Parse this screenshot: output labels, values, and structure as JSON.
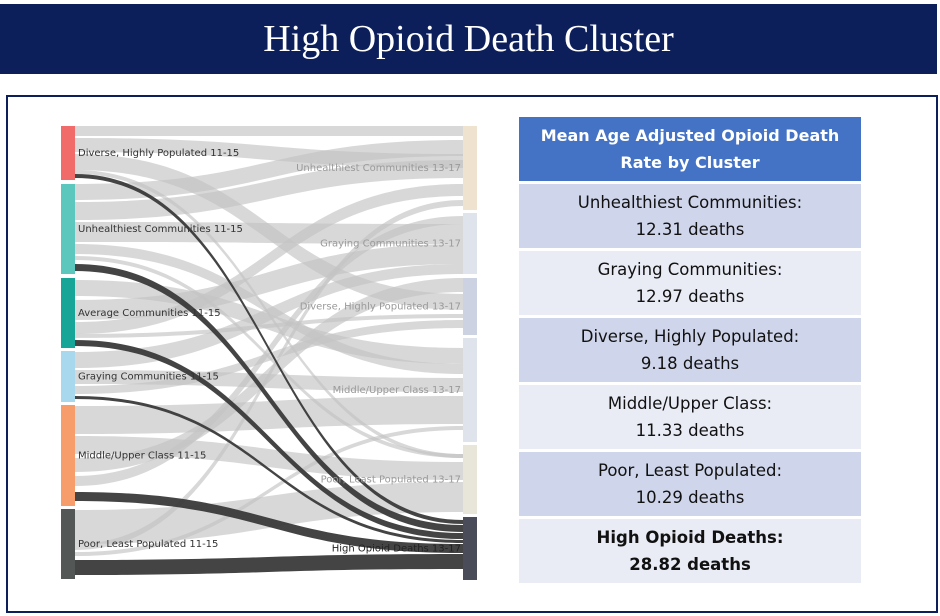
{
  "title": "High Opioid Death Cluster",
  "sankey": {
    "left_nodes": [
      {
        "label": "Diverse, Highly Populated 11-15",
        "color": "#f26b6b"
      },
      {
        "label": "Unhealthiest Communities 11-15",
        "color": "#5cc7bc"
      },
      {
        "label": "Average Communities 11-15",
        "color": "#17a597"
      },
      {
        "label": "Graying Communities 11-15",
        "color": "#a8d8ee"
      },
      {
        "label": "Middle/Upper Class 11-15",
        "color": "#f79c6b"
      },
      {
        "label": "Poor, Least Populated 11-15",
        "color": "#535755"
      }
    ],
    "right_nodes": [
      {
        "label": "Unhealthiest Communities 13-17",
        "color": "#efe2cf"
      },
      {
        "label": "Graying Communities 13-17",
        "color": "#dfe3ec"
      },
      {
        "label": "Diverse, Highly Populated 13-17",
        "color": "#ccd2e2"
      },
      {
        "label": "Middle/Upper Class 13-17",
        "color": "#dfe3ec"
      },
      {
        "label": "Poor, Least Populated 13-17",
        "color": "#e7e6d8"
      },
      {
        "label": "High Opioid Deaths 13-17",
        "color": "#4a4c5a"
      }
    ],
    "link_color": "#c3c3c3",
    "highlight_color": "#3a3a3a"
  },
  "table": {
    "header": "Mean Age Adjusted Opioid Death Rate by Cluster",
    "rows": [
      {
        "name": "Unhealthiest Communities:",
        "value": "12.31 deaths",
        "style": "dark"
      },
      {
        "name": "Graying Communities:",
        "value": "12.97 deaths",
        "style": "light"
      },
      {
        "name": "Diverse, Highly Populated:",
        "value": "9.18 deaths",
        "style": "dark"
      },
      {
        "name": "Middle/Upper Class:",
        "value": "11.33 deaths",
        "style": "light"
      },
      {
        "name": "Poor, Least Populated:",
        "value": "10.29 deaths",
        "style": "dark"
      },
      {
        "name": "High Opioid Deaths:",
        "value": "28.82 deaths",
        "style": "light bold"
      }
    ]
  }
}
